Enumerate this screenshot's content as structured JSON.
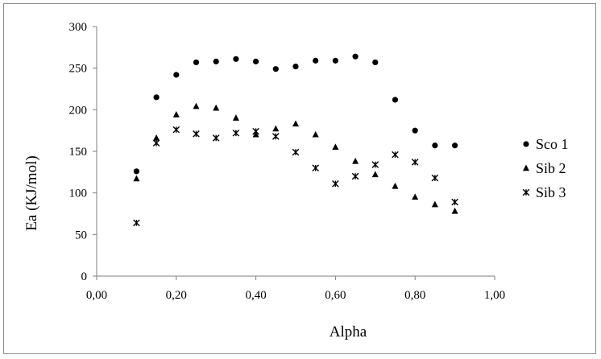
{
  "chart_data": {
    "type": "scatter",
    "title": "",
    "xlabel": "Alpha",
    "ylabel": "Ea (KJ/mol)",
    "xlim": [
      0,
      1
    ],
    "ylim": [
      0,
      300
    ],
    "x_ticks": [
      "0,00",
      "0,20",
      "0,40",
      "0,60",
      "0,80",
      "1,00"
    ],
    "y_ticks": [
      "0",
      "50",
      "100",
      "150",
      "200",
      "250",
      "300"
    ],
    "grid": false,
    "legend_position": "right",
    "series": [
      {
        "name": "Sco 1",
        "marker": "circle",
        "x": [
          0.1,
          0.15,
          0.2,
          0.25,
          0.3,
          0.35,
          0.4,
          0.45,
          0.5,
          0.55,
          0.6,
          0.65,
          0.7,
          0.75,
          0.8,
          0.85,
          0.9
        ],
        "y": [
          126,
          215,
          242,
          257,
          258,
          261,
          258,
          249,
          252,
          259,
          259,
          264,
          257,
          212,
          175,
          157,
          157
        ]
      },
      {
        "name": "Sib 2",
        "marker": "triangle",
        "x": [
          0.1,
          0.15,
          0.2,
          0.25,
          0.3,
          0.35,
          0.4,
          0.45,
          0.5,
          0.55,
          0.6,
          0.65,
          0.7,
          0.75,
          0.8,
          0.85,
          0.9
        ],
        "y": [
          117,
          166,
          194,
          204,
          202,
          190,
          170,
          177,
          183,
          170,
          155,
          138,
          122,
          108,
          95,
          86,
          78
        ]
      },
      {
        "name": "Sib 3",
        "marker": "star",
        "x": [
          0.1,
          0.15,
          0.2,
          0.25,
          0.3,
          0.35,
          0.4,
          0.45,
          0.5,
          0.55,
          0.6,
          0.65,
          0.7,
          0.75,
          0.8,
          0.85,
          0.9
        ],
        "y": [
          64,
          160,
          176,
          171,
          166,
          172,
          174,
          168,
          149,
          130,
          111,
          120,
          134,
          146,
          137,
          118,
          89
        ]
      }
    ],
    "colors": {
      "marker": "#000000",
      "axis": "#7f7f7f",
      "border": "#8c8c8c"
    }
  }
}
